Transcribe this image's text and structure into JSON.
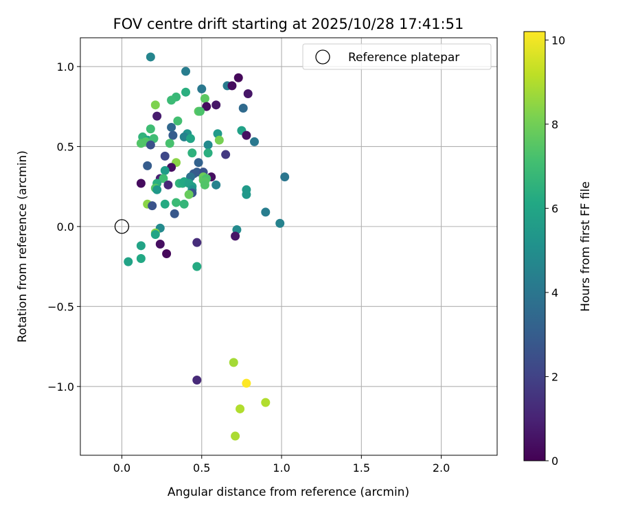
{
  "chart_data": {
    "type": "scatter",
    "title": "FOV centre drift starting at 2025/10/28 17:41:51",
    "xlabel": "Angular distance from reference (arcmin)",
    "ylabel": "Rotation from reference (arcmin)",
    "xlim": [
      -0.26,
      2.35
    ],
    "ylim": [
      -1.43,
      1.18
    ],
    "xticks": [
      0.0,
      0.5,
      1.0,
      1.5,
      2.0
    ],
    "xtick_labels": [
      "0.0",
      "0.5",
      "1.0",
      "1.5",
      "2.0"
    ],
    "yticks": [
      -1.0,
      -0.5,
      0.0,
      0.5,
      1.0
    ],
    "ytick_labels": [
      "−1.0",
      "−0.5",
      "0.0",
      "0.5",
      "1.0"
    ],
    "grid": true,
    "legend": {
      "placement": "top-right",
      "entries": [
        {
          "label": "Reference platepar",
          "marker": "open-circle"
        }
      ]
    },
    "reference_point": {
      "x": 0.0,
      "y": 0.0
    },
    "colorbar": {
      "label": "Hours from first FF file",
      "colormap": "viridis",
      "range": [
        0,
        10.2
      ],
      "ticks": [
        0,
        2,
        4,
        6,
        8,
        10
      ],
      "tick_labels": [
        "0",
        "2",
        "4",
        "6",
        "8",
        "10"
      ]
    },
    "points": [
      {
        "x": 0.18,
        "y": 1.06,
        "h": 4.6
      },
      {
        "x": 0.4,
        "y": 0.97,
        "h": 4.3
      },
      {
        "x": 0.66,
        "y": 0.88,
        "h": 4.2
      },
      {
        "x": 0.69,
        "y": 0.88,
        "h": 0.3
      },
      {
        "x": 0.73,
        "y": 0.93,
        "h": 0.2
      },
      {
        "x": 0.5,
        "y": 0.86,
        "h": 4.1
      },
      {
        "x": 0.4,
        "y": 0.84,
        "h": 6.4
      },
      {
        "x": 0.34,
        "y": 0.81,
        "h": 6.8
      },
      {
        "x": 0.31,
        "y": 0.79,
        "h": 6.9
      },
      {
        "x": 0.52,
        "y": 0.8,
        "h": 7.6
      },
      {
        "x": 0.21,
        "y": 0.76,
        "h": 8.2
      },
      {
        "x": 0.59,
        "y": 0.76,
        "h": 0.6
      },
      {
        "x": 0.53,
        "y": 0.75,
        "h": 0.3
      },
      {
        "x": 0.76,
        "y": 0.74,
        "h": 3.5
      },
      {
        "x": 0.79,
        "y": 0.83,
        "h": 0.6
      },
      {
        "x": 0.48,
        "y": 0.72,
        "h": 7.6
      },
      {
        "x": 0.49,
        "y": 0.72,
        "h": 7.3
      },
      {
        "x": 0.22,
        "y": 0.69,
        "h": 0.8
      },
      {
        "x": 0.35,
        "y": 0.66,
        "h": 7.1
      },
      {
        "x": 0.31,
        "y": 0.62,
        "h": 3.4
      },
      {
        "x": 0.18,
        "y": 0.61,
        "h": 7.0
      },
      {
        "x": 0.75,
        "y": 0.6,
        "h": 5.8
      },
      {
        "x": 0.6,
        "y": 0.58,
        "h": 5.5
      },
      {
        "x": 0.41,
        "y": 0.58,
        "h": 5.2
      },
      {
        "x": 0.32,
        "y": 0.57,
        "h": 3.0
      },
      {
        "x": 0.39,
        "y": 0.56,
        "h": 4.5
      },
      {
        "x": 0.43,
        "y": 0.55,
        "h": 6.0
      },
      {
        "x": 0.13,
        "y": 0.56,
        "h": 6.6
      },
      {
        "x": 0.16,
        "y": 0.54,
        "h": 6.0
      },
      {
        "x": 0.15,
        "y": 0.53,
        "h": 7.4
      },
      {
        "x": 0.12,
        "y": 0.52,
        "h": 7.4
      },
      {
        "x": 0.2,
        "y": 0.55,
        "h": 7.0
      },
      {
        "x": 0.18,
        "y": 0.51,
        "h": 2.5
      },
      {
        "x": 0.3,
        "y": 0.52,
        "h": 7.2
      },
      {
        "x": 0.61,
        "y": 0.54,
        "h": 8.1
      },
      {
        "x": 0.54,
        "y": 0.51,
        "h": 4.8
      },
      {
        "x": 0.78,
        "y": 0.57,
        "h": 0.4
      },
      {
        "x": 0.83,
        "y": 0.53,
        "h": 4.1
      },
      {
        "x": 0.44,
        "y": 0.46,
        "h": 6.5
      },
      {
        "x": 0.54,
        "y": 0.46,
        "h": 6.4
      },
      {
        "x": 0.65,
        "y": 0.45,
        "h": 1.7
      },
      {
        "x": 0.27,
        "y": 0.44,
        "h": 2.2
      },
      {
        "x": 0.48,
        "y": 0.4,
        "h": 3.2
      },
      {
        "x": 0.34,
        "y": 0.4,
        "h": 8.4
      },
      {
        "x": 0.16,
        "y": 0.38,
        "h": 3.0
      },
      {
        "x": 0.31,
        "y": 0.37,
        "h": 0.4
      },
      {
        "x": 0.27,
        "y": 0.35,
        "h": 5.6
      },
      {
        "x": 0.47,
        "y": 0.34,
        "h": 3.0
      },
      {
        "x": 0.51,
        "y": 0.34,
        "h": 2.6
      },
      {
        "x": 0.45,
        "y": 0.33,
        "h": 2.9
      },
      {
        "x": 0.43,
        "y": 0.31,
        "h": 3.8
      },
      {
        "x": 0.56,
        "y": 0.31,
        "h": 0.4
      },
      {
        "x": 0.51,
        "y": 0.31,
        "h": 7.9
      },
      {
        "x": 0.51,
        "y": 0.29,
        "h": 7.6
      },
      {
        "x": 0.53,
        "y": 0.3,
        "h": 7.3
      },
      {
        "x": 0.52,
        "y": 0.28,
        "h": 7.5
      },
      {
        "x": 0.52,
        "y": 0.26,
        "h": 7.4
      },
      {
        "x": 0.24,
        "y": 0.3,
        "h": 0.9
      },
      {
        "x": 0.26,
        "y": 0.3,
        "h": 7.0
      },
      {
        "x": 0.22,
        "y": 0.27,
        "h": 6.4
      },
      {
        "x": 0.21,
        "y": 0.24,
        "h": 7.5
      },
      {
        "x": 0.22,
        "y": 0.23,
        "h": 5.4
      },
      {
        "x": 0.29,
        "y": 0.26,
        "h": 1.1
      },
      {
        "x": 0.36,
        "y": 0.27,
        "h": 6.6
      },
      {
        "x": 0.38,
        "y": 0.27,
        "h": 6.3
      },
      {
        "x": 0.39,
        "y": 0.28,
        "h": 6.1
      },
      {
        "x": 0.42,
        "y": 0.27,
        "h": 5.8
      },
      {
        "x": 0.44,
        "y": 0.25,
        "h": 5.7
      },
      {
        "x": 0.44,
        "y": 0.23,
        "h": 5.1
      },
      {
        "x": 0.44,
        "y": 0.21,
        "h": 2.7
      },
      {
        "x": 0.42,
        "y": 0.2,
        "h": 7.8
      },
      {
        "x": 0.59,
        "y": 0.26,
        "h": 4.5
      },
      {
        "x": 0.12,
        "y": 0.27,
        "h": 0.3
      },
      {
        "x": 0.78,
        "y": 0.23,
        "h": 5.5
      },
      {
        "x": 0.78,
        "y": 0.2,
        "h": 5.4
      },
      {
        "x": 1.02,
        "y": 0.31,
        "h": 4.0
      },
      {
        "x": 0.34,
        "y": 0.15,
        "h": 6.9
      },
      {
        "x": 0.39,
        "y": 0.14,
        "h": 6.7
      },
      {
        "x": 0.16,
        "y": 0.14,
        "h": 8.4
      },
      {
        "x": 0.19,
        "y": 0.13,
        "h": 2.6
      },
      {
        "x": 0.27,
        "y": 0.14,
        "h": 6.2
      },
      {
        "x": 0.33,
        "y": 0.08,
        "h": 2.8
      },
      {
        "x": 0.9,
        "y": 0.09,
        "h": 4.3
      },
      {
        "x": 0.99,
        "y": 0.02,
        "h": 4.5
      },
      {
        "x": 0.72,
        "y": -0.02,
        "h": 4.8
      },
      {
        "x": 0.71,
        "y": -0.06,
        "h": 0.6
      },
      {
        "x": 0.24,
        "y": -0.01,
        "h": 4.8
      },
      {
        "x": 0.21,
        "y": -0.04,
        "h": 8.3
      },
      {
        "x": 0.21,
        "y": -0.05,
        "h": 6.0
      },
      {
        "x": 0.12,
        "y": -0.12,
        "h": 5.9
      },
      {
        "x": 0.24,
        "y": -0.11,
        "h": 0.4
      },
      {
        "x": 0.47,
        "y": -0.1,
        "h": 1.3
      },
      {
        "x": 0.28,
        "y": -0.17,
        "h": 0.2
      },
      {
        "x": 0.04,
        "y": -0.22,
        "h": 5.9
      },
      {
        "x": 0.12,
        "y": -0.2,
        "h": 6.1
      },
      {
        "x": 0.47,
        "y": -0.25,
        "h": 6.2
      },
      {
        "x": 0.7,
        "y": -0.85,
        "h": 8.8
      },
      {
        "x": 0.78,
        "y": -0.98,
        "h": 10.2
      },
      {
        "x": 0.9,
        "y": -1.1,
        "h": 9.0
      },
      {
        "x": 0.74,
        "y": -1.14,
        "h": 9.0
      },
      {
        "x": 0.71,
        "y": -1.31,
        "h": 8.9
      },
      {
        "x": 0.47,
        "y": -0.96,
        "h": 1.2
      }
    ]
  }
}
